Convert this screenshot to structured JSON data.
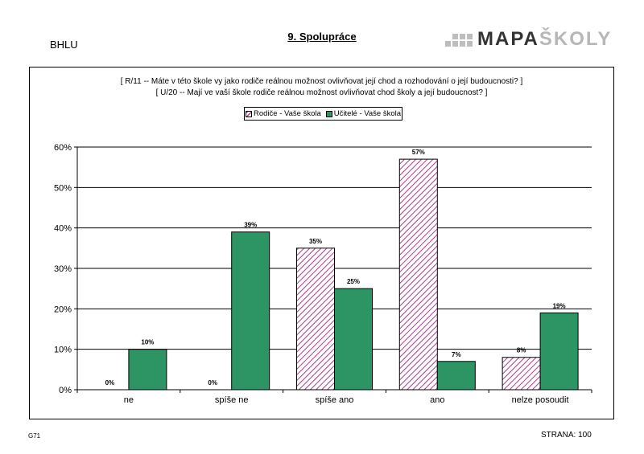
{
  "header": {
    "school_code": "BHLU",
    "section_title": "9. Spolupráce",
    "logo_primary": "MAPA",
    "logo_secondary": "ŠKOLY"
  },
  "questions": {
    "line1": "[ R/11 --   Máte v této škole vy jako rodiče reálnou možnost ovlivňovat její chod a rozhodování o její budoucnosti? ]",
    "line2": "[ U/20 --   Mají ve vaší škole rodiče reálnou možnost ovlivňovat chod školy a její budoucnost? ]"
  },
  "legend": {
    "parents": "Rodiče - Vaše škola",
    "teachers": "Učitelé - Vaše škola"
  },
  "footer": {
    "left": "G71",
    "right": "STRANA: 100"
  },
  "colors": {
    "parents_hatch": "#b03a8b",
    "teachers_fill": "#2d9464",
    "axis": "#000000",
    "gridline": "#000000"
  },
  "chart_data": {
    "type": "bar",
    "title": "",
    "xlabel": "",
    "ylabel": "",
    "categories": [
      "ne",
      "spíše ne",
      "spíše ano",
      "ano",
      "nelze posoudit"
    ],
    "series": [
      {
        "name": "Rodiče - Vaše škola",
        "values": [
          0,
          0,
          35,
          57,
          8
        ],
        "labels": [
          "0%",
          "0%",
          "35%",
          "57%",
          "8%"
        ]
      },
      {
        "name": "Učitelé - Vaše škola",
        "values": [
          10,
          39,
          25,
          7,
          19
        ],
        "labels": [
          "10%",
          "39%",
          "25%",
          "7%",
          "19%"
        ]
      }
    ],
    "ylim": [
      0,
      60
    ],
    "yticks": [
      0,
      10,
      20,
      30,
      40,
      50,
      60
    ],
    "ytick_labels": [
      "0%",
      "10%",
      "20%",
      "30%",
      "40%",
      "50%",
      "60%"
    ],
    "grid": true,
    "legend_position": "top-center"
  }
}
